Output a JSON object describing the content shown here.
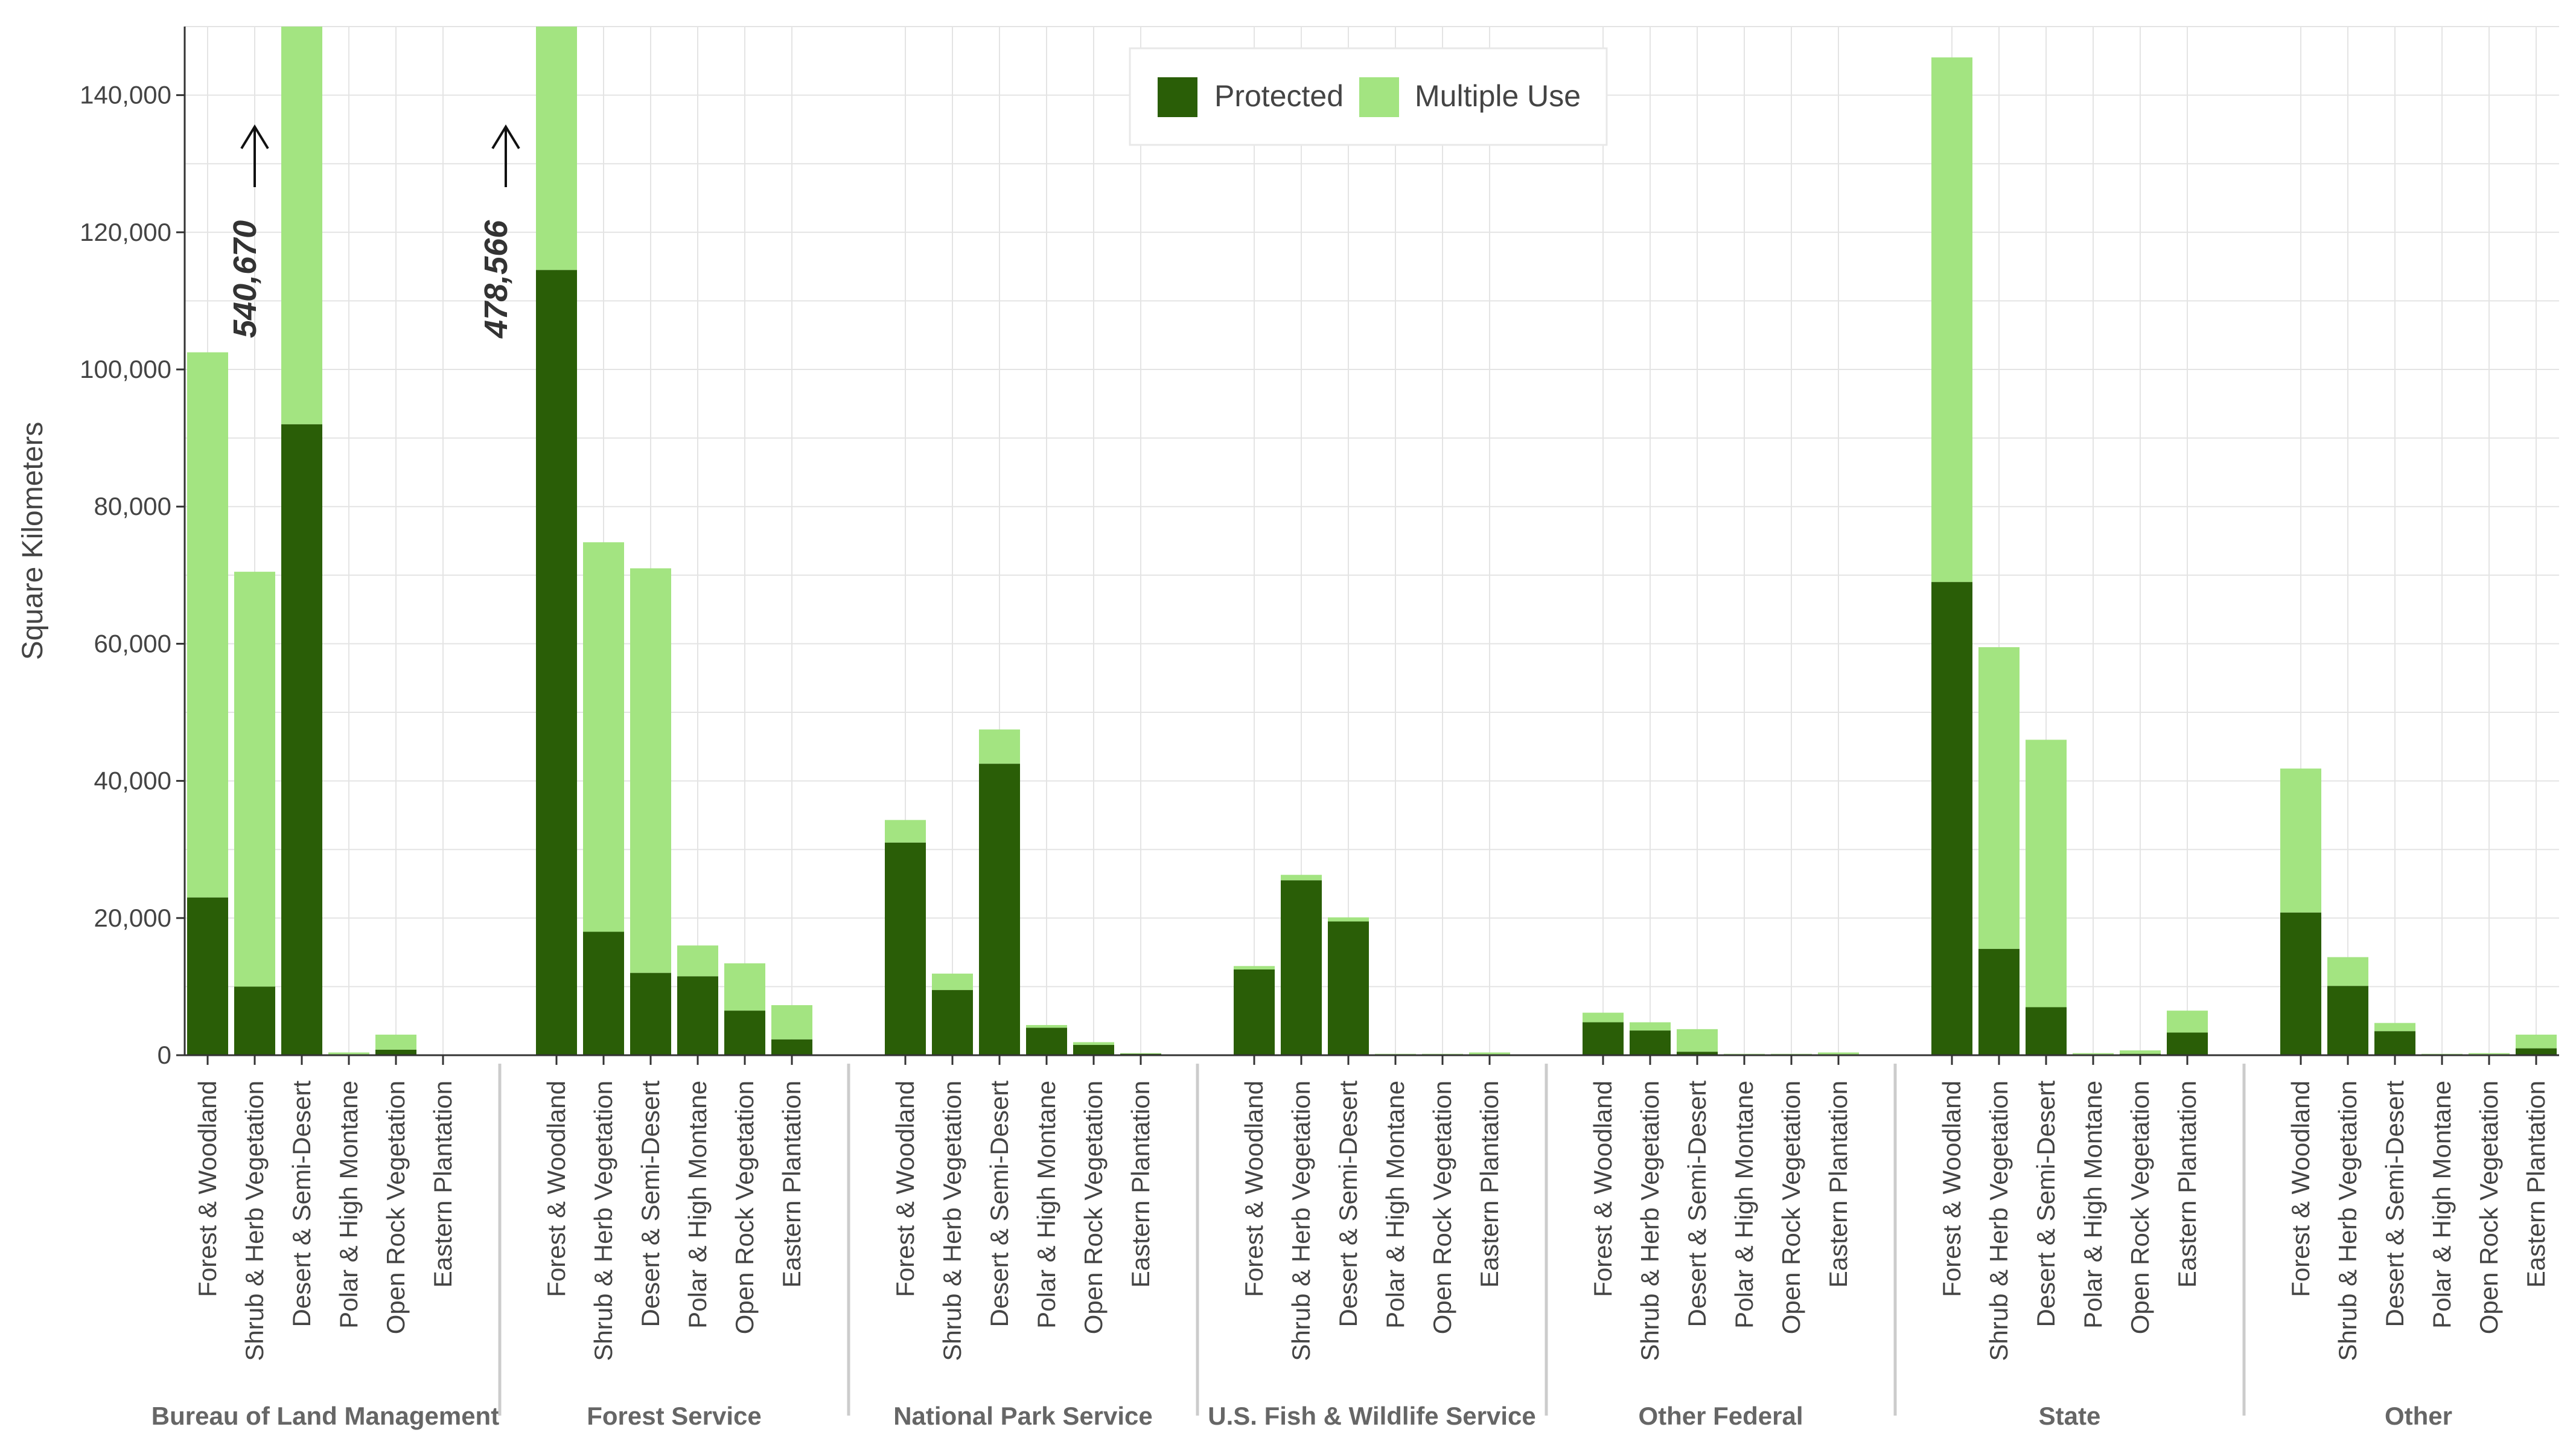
{
  "chart_data": {
    "type": "bar",
    "stacked": true,
    "ylabel": "Square Kilometers",
    "ylim": [
      0,
      150000
    ],
    "yticks": [
      0,
      20000,
      40000,
      60000,
      80000,
      100000,
      120000,
      140000
    ],
    "ytick_labels": [
      "0",
      "20,000",
      "40,000",
      "60,000",
      "80,000",
      "100,000",
      "120,000",
      "140,000"
    ],
    "grid": true,
    "legend_position": "top-center",
    "colors": {
      "protected": "#2a5e07",
      "multiple_use": "#a3e481",
      "grid": "#e4e4e4",
      "axis": "#333333",
      "separator": "#cccccc"
    },
    "categories": [
      "Forest & Woodland",
      "Shrub & Herb Vegetation",
      "Desert & Semi-Desert",
      "Polar & High Montane",
      "Open Rock Vegetation",
      "Eastern Plantation"
    ],
    "series": [
      {
        "name": "Protected",
        "key": "protected"
      },
      {
        "name": "Multiple Use",
        "key": "multiple_use"
      }
    ],
    "groups": [
      {
        "name": "Bureau of Land Management",
        "protected": [
          23000,
          10000,
          92000,
          100,
          800,
          0
        ],
        "multiple_use": [
          79500,
          60500,
          448670,
          300,
          2200,
          0
        ]
      },
      {
        "name": "Forest Service",
        "protected": [
          114500,
          18000,
          12000,
          11500,
          6500,
          2300
        ],
        "multiple_use": [
          364066,
          56800,
          59000,
          4500,
          6900,
          5000
        ]
      },
      {
        "name": "National Park Service",
        "protected": [
          31000,
          9500,
          42500,
          4000,
          1500,
          200
        ],
        "multiple_use": [
          3300,
          2400,
          5000,
          400,
          400,
          100
        ]
      },
      {
        "name": "U.S. Fish & Wildlife Service",
        "protected": [
          12500,
          25500,
          19500,
          100,
          100,
          100
        ],
        "multiple_use": [
          500,
          800,
          600,
          100,
          100,
          300
        ]
      },
      {
        "name": "Other Federal",
        "protected": [
          4800,
          3600,
          500,
          100,
          100,
          100
        ],
        "multiple_use": [
          1400,
          1200,
          3300,
          100,
          100,
          300
        ]
      },
      {
        "name": "State",
        "protected": [
          69000,
          15500,
          7000,
          100,
          200,
          3300
        ],
        "multiple_use": [
          76500,
          44000,
          39000,
          200,
          500,
          3200
        ]
      },
      {
        "name": "Other",
        "protected": [
          20800,
          10100,
          3500,
          100,
          100,
          1000
        ],
        "multiple_use": [
          21000,
          4200,
          1200,
          100,
          200,
          2000
        ]
      }
    ],
    "annotations": [
      {
        "text": "540,670",
        "group": 0,
        "category": 2
      },
      {
        "text": "478,566",
        "group": 1,
        "category": 0
      }
    ]
  }
}
